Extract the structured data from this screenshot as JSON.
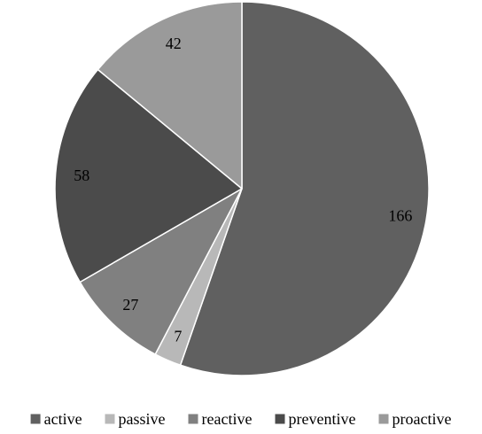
{
  "chart_data": {
    "type": "pie",
    "title": "",
    "slices": [
      {
        "label": "active",
        "value": 166,
        "color": "#606060"
      },
      {
        "label": "passive",
        "value": 7,
        "color": "#b8b8b8"
      },
      {
        "label": "reactive",
        "value": 27,
        "color": "#808080"
      },
      {
        "label": "preventive",
        "value": 58,
        "color": "#4b4b4b"
      },
      {
        "label": "proactive",
        "value": 42,
        "color": "#9a9a9a"
      }
    ],
    "start_angle": "12 o'clock",
    "direction": "clockwise",
    "data_labels": true,
    "legend_position": "bottom"
  }
}
